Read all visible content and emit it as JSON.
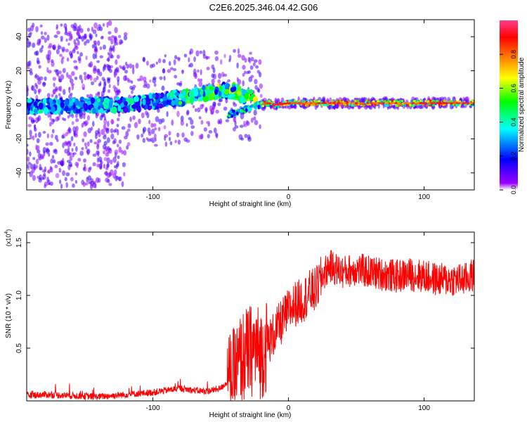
{
  "title": "C2E6.2025.346.04.42.G06",
  "chart_data": [
    {
      "type": "heatmap",
      "title": "C2E6.2025.346.04.42.G06",
      "xlabel": "Height of straight line (km)",
      "ylabel": "Frequency (Hz)",
      "xlim": [
        -193,
        137
      ],
      "ylim": [
        -50,
        50
      ],
      "xticks": [
        -100,
        0,
        100
      ],
      "xtick_labels": [
        "-100",
        "0",
        "100"
      ],
      "yticks": [
        -40,
        -20,
        0,
        20,
        40
      ],
      "ytick_labels": [
        "-40",
        "-20",
        "0",
        "20",
        "40"
      ],
      "ridge": {
        "x": [
          -193,
          -170,
          -140,
          -120,
          -100,
          -80,
          -60,
          -50,
          -40,
          -35,
          -30,
          -25,
          -20,
          -15,
          -10,
          0,
          10,
          50,
          100,
          137
        ],
        "frequency": [
          -1,
          -1,
          0,
          0,
          2,
          4,
          7,
          8,
          8,
          6,
          5,
          4,
          0,
          1,
          0,
          1,
          1,
          1,
          1,
          1
        ]
      },
      "colorbar": {
        "label": "Normalized spectral amplitude",
        "range": [
          0,
          1
        ],
        "ticks": [
          0.0,
          0.2,
          0.4,
          0.6,
          0.8
        ],
        "tick_labels": [
          "0.0",
          "0.2",
          "0.4",
          "0.6",
          "0.8"
        ],
        "colors": [
          "#ffffff",
          "#9b00ff",
          "#0000ff",
          "#00ffff",
          "#00ff00",
          "#ffff00",
          "#ff8000",
          "#ff0000",
          "#ff3c8c"
        ]
      }
    },
    {
      "type": "line",
      "xlabel": "Height of straight line (km)",
      "ylabel": "SNR (10 * v/v)",
      "multiplier": "(x10",
      "multiplier_exp": "4",
      "multiplier_close": ")",
      "xlim": [
        -193,
        137
      ],
      "ylim": [
        0,
        1.6
      ],
      "xticks": [
        -100,
        0,
        100
      ],
      "xtick_labels": [
        "-100",
        "0",
        "100"
      ],
      "yticks": [
        0.5,
        1.0,
        1.5
      ],
      "ytick_labels": [
        "0.5",
        "1.0",
        "1.5"
      ],
      "color": "#ff0000",
      "series": [
        {
          "name": "SNR",
          "x": [
            -193,
            -180,
            -160,
            -140,
            -120,
            -100,
            -90,
            -80,
            -70,
            -60,
            -50,
            -45,
            -40,
            -35,
            -30,
            -25,
            -20,
            -15,
            -10,
            -5,
            0,
            5,
            10,
            15,
            20,
            25,
            30,
            40,
            50,
            60,
            70,
            80,
            90,
            100,
            110,
            120,
            130,
            137
          ],
          "values": [
            0.05,
            0.06,
            0.05,
            0.04,
            0.06,
            0.08,
            0.1,
            0.12,
            0.1,
            0.09,
            0.12,
            0.18,
            0.25,
            0.4,
            0.45,
            0.5,
            0.45,
            0.55,
            0.65,
            0.75,
            0.85,
            0.92,
            0.95,
            1.02,
            1.05,
            1.18,
            1.28,
            1.22,
            1.25,
            1.22,
            1.2,
            1.18,
            1.2,
            1.18,
            1.15,
            1.15,
            1.15,
            1.2
          ]
        }
      ]
    }
  ]
}
